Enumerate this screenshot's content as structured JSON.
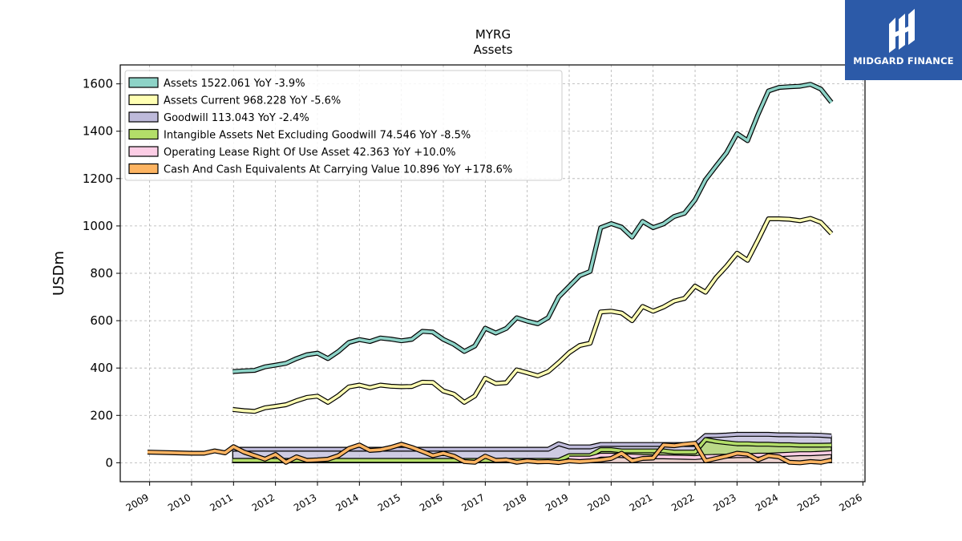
{
  "brand": {
    "name": "MIDGARD FINANCE",
    "accent": "#2c5aa8",
    "icon": "midgard-logo-icon"
  },
  "chart_data": {
    "type": "area",
    "title": "MYRG",
    "subtitle": "Assets",
    "xlabel": "",
    "ylabel": "USDm",
    "xlim": [
      2008.3,
      2026.05
    ],
    "ylim": [
      -80,
      1680
    ],
    "x_ticks": [
      "2009",
      "2010",
      "2011",
      "2012",
      "2013",
      "2014",
      "2015",
      "2016",
      "2017",
      "2018",
      "2019",
      "2020",
      "2021",
      "2022",
      "2023",
      "2024",
      "2025",
      "2026"
    ],
    "y_ticks": [
      0,
      200,
      400,
      600,
      800,
      1000,
      1200,
      1400,
      1600
    ],
    "grid": true,
    "legend_position": "top-left",
    "series": [
      {
        "name": "Assets  1522.061 YoY -3.9%",
        "color": "#8dd3c7",
        "x": [
          2010.98,
          2011.25,
          2011.5,
          2011.75,
          2012.0,
          2012.25,
          2012.5,
          2012.75,
          2013.0,
          2013.25,
          2013.5,
          2013.75,
          2014.0,
          2014.25,
          2014.5,
          2014.75,
          2015.0,
          2015.25,
          2015.5,
          2015.75,
          2016.0,
          2016.25,
          2016.5,
          2016.75,
          2017.0,
          2017.25,
          2017.5,
          2017.75,
          2018.0,
          2018.25,
          2018.5,
          2018.75,
          2019.0,
          2019.25,
          2019.5,
          2019.75,
          2020.0,
          2020.25,
          2020.5,
          2020.75,
          2021.0,
          2021.25,
          2021.5,
          2021.75,
          2022.0,
          2022.25,
          2022.5,
          2022.75,
          2023.0,
          2023.25,
          2023.5,
          2023.75,
          2024.0,
          2024.25,
          2024.5,
          2024.75,
          2025.0,
          2025.25
        ],
        "values": [
          385,
          388,
          390,
          405,
          412,
          420,
          440,
          456,
          463,
          440,
          470,
          508,
          520,
          512,
          527,
          522,
          515,
          521,
          555,
          552,
          521,
          500,
          470,
          493,
          568,
          548,
          567,
          612,
          598,
          587,
          613,
          700,
          745,
          790,
          808,
          993,
          1010,
          995,
          953,
          1019,
          993,
          1009,
          1040,
          1054,
          1110,
          1195,
          1253,
          1309,
          1390,
          1360,
          1470,
          1570,
          1585,
          1588,
          1590,
          1598,
          1578,
          1522
        ]
      },
      {
        "name": "Assets Current  968.228 YoY -5.6%",
        "color": "#ffffb3",
        "x": [
          2010.98,
          2011.25,
          2011.5,
          2011.75,
          2012.0,
          2012.25,
          2012.5,
          2012.75,
          2013.0,
          2013.25,
          2013.5,
          2013.75,
          2014.0,
          2014.25,
          2014.5,
          2014.75,
          2015.0,
          2015.25,
          2015.5,
          2015.75,
          2016.0,
          2016.25,
          2016.5,
          2016.75,
          2017.0,
          2017.25,
          2017.5,
          2017.75,
          2018.0,
          2018.25,
          2018.5,
          2018.75,
          2019.0,
          2019.25,
          2019.5,
          2019.75,
          2020.0,
          2020.25,
          2020.5,
          2020.75,
          2021.0,
          2021.25,
          2021.5,
          2021.75,
          2022.0,
          2022.25,
          2022.5,
          2022.75,
          2023.0,
          2023.25,
          2023.5,
          2023.75,
          2024.0,
          2024.25,
          2024.5,
          2024.75,
          2025.0,
          2025.25
        ],
        "values": [
          225,
          220,
          217,
          232,
          238,
          245,
          262,
          276,
          281,
          255,
          284,
          320,
          328,
          317,
          328,
          323,
          321,
          322,
          340,
          339,
          303,
          290,
          255,
          282,
          357,
          335,
          338,
          392,
          380,
          367,
          385,
          423,
          465,
          495,
          505,
          637,
          640,
          632,
          600,
          660,
          640,
          658,
          683,
          694,
          746,
          720,
          782,
          830,
          885,
          855,
          940,
          1030,
          1030,
          1028,
          1022,
          1032,
          1015,
          968
        ]
      },
      {
        "name": "Goodwill  113.043 YoY -2.4%",
        "color": "#bebada",
        "x": [
          2010.98,
          2011.25,
          2011.5,
          2011.75,
          2012.0,
          2012.25,
          2012.5,
          2012.75,
          2013.0,
          2013.25,
          2013.5,
          2013.75,
          2014.0,
          2014.25,
          2014.5,
          2014.75,
          2015.0,
          2015.25,
          2015.5,
          2015.75,
          2016.0,
          2016.25,
          2016.5,
          2016.75,
          2017.0,
          2017.25,
          2017.5,
          2017.75,
          2018.0,
          2018.25,
          2018.5,
          2018.75,
          2019.0,
          2019.25,
          2019.5,
          2019.75,
          2020.0,
          2020.25,
          2020.5,
          2020.75,
          2021.0,
          2021.25,
          2021.5,
          2021.75,
          2022.0,
          2022.25,
          2022.5,
          2022.75,
          2023.0,
          2023.25,
          2023.5,
          2023.75,
          2024.0,
          2024.25,
          2024.5,
          2024.75,
          2025.0,
          2025.25
        ],
        "values": [
          57,
          57,
          57,
          57,
          57,
          57,
          57,
          57,
          57,
          57,
          57,
          57,
          57,
          57,
          57,
          57,
          57,
          57,
          57,
          57,
          57,
          57,
          57,
          57,
          57,
          57,
          57,
          57,
          57,
          57,
          57,
          80,
          67,
          67,
          67,
          77,
          77,
          77,
          77,
          77,
          77,
          77,
          77,
          77,
          77,
          115,
          115,
          117,
          120,
          120,
          120,
          120,
          118,
          118,
          117,
          117,
          116,
          113
        ]
      },
      {
        "name": "Intangible Assets Net Excluding Goodwill  74.546 YoY -8.5%",
        "color": "#b3de69",
        "x": [
          2010.98,
          2011.25,
          2011.5,
          2011.75,
          2012.0,
          2012.25,
          2012.5,
          2012.75,
          2013.0,
          2013.25,
          2013.5,
          2013.75,
          2014.0,
          2014.25,
          2014.5,
          2014.75,
          2015.0,
          2015.25,
          2015.5,
          2015.75,
          2016.0,
          2016.25,
          2016.5,
          2016.75,
          2017.0,
          2017.25,
          2017.5,
          2017.75,
          2018.0,
          2018.25,
          2018.5,
          2018.75,
          2019.0,
          2019.25,
          2019.5,
          2019.75,
          2020.0,
          2020.25,
          2020.5,
          2020.75,
          2021.0,
          2021.25,
          2021.5,
          2021.75,
          2022.0,
          2022.25,
          2022.5,
          2022.75,
          2023.0,
          2023.25,
          2023.5,
          2023.75,
          2024.0,
          2024.25,
          2024.5,
          2024.75,
          2025.0,
          2025.25
        ],
        "values": [
          10,
          10,
          10,
          10,
          10,
          10,
          10,
          10,
          10,
          10,
          10,
          10,
          10,
          10,
          10,
          10,
          10,
          10,
          10,
          10,
          10,
          10,
          10,
          10,
          10,
          10,
          10,
          10,
          10,
          10,
          10,
          10,
          30,
          30,
          30,
          55,
          55,
          50,
          50,
          50,
          50,
          50,
          45,
          45,
          45,
          98,
          90,
          85,
          80,
          80,
          78,
          78,
          76,
          76,
          74,
          74,
          74,
          74.546
        ]
      },
      {
        "name": "Operating Lease Right Of Use Asset  42.363 YoY +10.0%",
        "color": "#fccde5",
        "x": [
          2019.0,
          2019.25,
          2019.5,
          2019.75,
          2020.0,
          2020.25,
          2020.5,
          2020.75,
          2021.0,
          2021.25,
          2021.5,
          2021.75,
          2022.0,
          2022.25,
          2022.5,
          2022.75,
          2023.0,
          2023.25,
          2023.5,
          2023.75,
          2024.0,
          2024.25,
          2024.5,
          2024.75,
          2025.0,
          2025.25
        ],
        "values": [
          20,
          20,
          20,
          32,
          32,
          30,
          28,
          26,
          25,
          25,
          24,
          23,
          22,
          26,
          27,
          28,
          30,
          30,
          32,
          32,
          34,
          36,
          38,
          38,
          40,
          42.363
        ]
      },
      {
        "name": "Cash And Cash Equivalents At Carrying Value  10.896 YoY +178.6%",
        "color": "#fdb462",
        "x": [
          2008.95,
          2010.0,
          2010.3,
          2010.55,
          2010.8,
          2011.0,
          2011.25,
          2011.5,
          2011.75,
          2012.0,
          2012.25,
          2012.5,
          2012.75,
          2013.0,
          2013.25,
          2013.5,
          2013.75,
          2014.0,
          2014.25,
          2014.5,
          2014.75,
          2015.0,
          2015.25,
          2015.5,
          2015.75,
          2016.0,
          2016.25,
          2016.5,
          2016.75,
          2017.0,
          2017.25,
          2017.5,
          2017.75,
          2018.0,
          2018.25,
          2018.5,
          2018.75,
          2019.0,
          2019.25,
          2019.5,
          2019.75,
          2020.0,
          2020.25,
          2020.5,
          2020.75,
          2021.0,
          2021.25,
          2021.5,
          2021.75,
          2022.0,
          2022.25,
          2022.5,
          2022.75,
          2023.0,
          2023.25,
          2023.5,
          2023.75,
          2024.0,
          2024.25,
          2024.5,
          2024.75,
          2025.0,
          2025.25
        ],
        "values": [
          45,
          40,
          40,
          50,
          42,
          68,
          45,
          30,
          15,
          35,
          2,
          25,
          10,
          12,
          15,
          30,
          60,
          75,
          52,
          55,
          65,
          78,
          65,
          48,
          30,
          40,
          28,
          5,
          2,
          28,
          10,
          12,
          2,
          8,
          4,
          5,
          1,
          8,
          5,
          8,
          12,
          18,
          40,
          8,
          18,
          20,
          75,
          72,
          78,
          82,
          8,
          18,
          28,
          40,
          36,
          12,
          30,
          25,
          2,
          0,
          5,
          2,
          10.896
        ]
      }
    ]
  }
}
